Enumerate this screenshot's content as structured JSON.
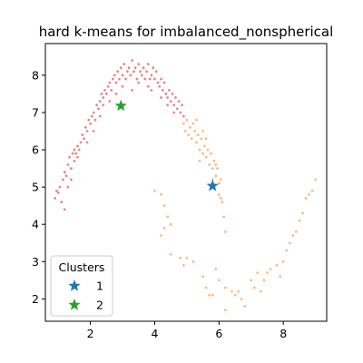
{
  "chart_data": {
    "type": "scatter",
    "title": "hard k-means for imbalanced_nonspherical",
    "xlabel": "",
    "ylabel": "",
    "xlim": [
      0.6,
      9.35
    ],
    "ylim": [
      1.4,
      8.85
    ],
    "xticks": [
      2,
      4,
      6,
      8
    ],
    "yticks": [
      2,
      3,
      4,
      5,
      6,
      7,
      8
    ],
    "grid": false,
    "point_colors": {
      "red": "#d62728",
      "orange": "#ff7f0e"
    },
    "point_groups": [
      {
        "color": "red",
        "points": [
          [
            0.9,
            4.7
          ],
          [
            0.95,
            4.9
          ],
          [
            1.0,
            4.85
          ],
          [
            1.05,
            5.0
          ],
          [
            1.1,
            4.6
          ],
          [
            1.15,
            5.2
          ],
          [
            1.2,
            4.4
          ],
          [
            1.2,
            5.4
          ],
          [
            1.25,
            5.3
          ],
          [
            1.3,
            5.0
          ],
          [
            1.3,
            5.6
          ],
          [
            1.35,
            5.8
          ],
          [
            1.4,
            5.5
          ],
          [
            1.45,
            5.9
          ],
          [
            1.5,
            6.0
          ],
          [
            1.5,
            5.7
          ],
          [
            1.55,
            5.9
          ],
          [
            1.6,
            6.1
          ],
          [
            1.65,
            6.0
          ],
          [
            1.7,
            6.2
          ],
          [
            1.75,
            6.4
          ],
          [
            1.8,
            6.3
          ],
          [
            1.85,
            6.6
          ],
          [
            1.9,
            6.5
          ],
          [
            1.95,
            6.8
          ],
          [
            2.0,
            6.7
          ],
          [
            2.05,
            6.9
          ],
          [
            2.1,
            7.0
          ],
          [
            2.15,
            6.8
          ],
          [
            2.2,
            7.2
          ],
          [
            2.25,
            7.1
          ],
          [
            2.3,
            7.3
          ],
          [
            2.35,
            7.5
          ],
          [
            2.4,
            7.4
          ],
          [
            2.45,
            7.6
          ],
          [
            2.5,
            7.5
          ],
          [
            2.55,
            7.7
          ],
          [
            2.6,
            7.8
          ],
          [
            2.65,
            7.6
          ],
          [
            2.7,
            7.9
          ],
          [
            2.75,
            8.0
          ],
          [
            2.8,
            7.8
          ],
          [
            2.85,
            8.1
          ],
          [
            2.9,
            7.9
          ],
          [
            2.95,
            8.2
          ],
          [
            3.0,
            8.0
          ],
          [
            3.05,
            8.3
          ],
          [
            3.1,
            7.9
          ],
          [
            3.15,
            8.1
          ],
          [
            3.2,
            8.2
          ],
          [
            3.25,
            8.0
          ],
          [
            3.3,
            8.4
          ],
          [
            3.35,
            8.1
          ],
          [
            3.4,
            8.2
          ],
          [
            3.45,
            7.9
          ],
          [
            3.5,
            8.3
          ],
          [
            3.55,
            8.1
          ],
          [
            3.6,
            8.0
          ],
          [
            3.65,
            8.2
          ],
          [
            3.7,
            7.9
          ],
          [
            3.75,
            8.1
          ],
          [
            3.8,
            8.3
          ],
          [
            3.85,
            7.9
          ],
          [
            3.9,
            8.0
          ],
          [
            3.95,
            8.2
          ],
          [
            4.0,
            7.9
          ],
          [
            4.05,
            8.1
          ],
          [
            4.1,
            7.8
          ],
          [
            4.15,
            7.7
          ],
          [
            4.2,
            7.9
          ],
          [
            4.25,
            7.6
          ],
          [
            4.3,
            7.8
          ],
          [
            4.35,
            7.5
          ],
          [
            4.4,
            7.4
          ],
          [
            4.45,
            7.6
          ],
          [
            4.5,
            7.3
          ],
          [
            4.55,
            7.5
          ],
          [
            4.6,
            7.2
          ],
          [
            4.65,
            7.4
          ],
          [
            4.7,
            7.1
          ],
          [
            4.75,
            7.3
          ],
          [
            4.8,
            7.0
          ],
          [
            4.85,
            7.2
          ],
          [
            4.9,
            6.9
          ],
          [
            2.6,
            7.3
          ],
          [
            2.3,
            6.9
          ],
          [
            1.9,
            6.2
          ],
          [
            3.3,
            7.6
          ],
          [
            3.8,
            7.7
          ],
          [
            4.4,
            7.2
          ],
          [
            1.4,
            5.2
          ],
          [
            2.1,
            6.5
          ],
          [
            2.8,
            7.5
          ],
          [
            3.5,
            7.8
          ],
          [
            4.2,
            7.4
          ],
          [
            1.6,
            5.8
          ],
          [
            2.4,
            7.2
          ],
          [
            3.0,
            7.7
          ],
          [
            3.9,
            7.6
          ],
          [
            4.6,
            7.0
          ]
        ]
      },
      {
        "color": "orange",
        "points": [
          [
            4.9,
            6.7
          ],
          [
            4.95,
            6.5
          ],
          [
            5.0,
            6.8
          ],
          [
            5.05,
            6.4
          ],
          [
            5.1,
            6.6
          ],
          [
            5.15,
            6.3
          ],
          [
            5.2,
            6.7
          ],
          [
            5.25,
            6.5
          ],
          [
            5.3,
            6.2
          ],
          [
            5.35,
            6.4
          ],
          [
            5.4,
            6.0
          ],
          [
            5.45,
            6.3
          ],
          [
            5.5,
            5.9
          ],
          [
            5.55,
            6.1
          ],
          [
            5.6,
            5.8
          ],
          [
            5.65,
            6.0
          ],
          [
            5.7,
            5.6
          ],
          [
            5.75,
            5.9
          ],
          [
            5.8,
            5.5
          ],
          [
            5.85,
            5.7
          ],
          [
            5.9,
            5.3
          ],
          [
            5.95,
            5.5
          ],
          [
            6.0,
            5.1
          ],
          [
            6.05,
            5.2
          ],
          [
            5.3,
            6.8
          ],
          [
            5.6,
            6.3
          ],
          [
            5.8,
            5.2
          ],
          [
            5.5,
            6.5
          ],
          [
            5.9,
            5.6
          ],
          [
            5.4,
            5.7
          ],
          [
            6.0,
            4.8
          ],
          [
            6.05,
            4.7
          ],
          [
            6.1,
            4.6
          ],
          [
            6.15,
            4.2
          ],
          [
            6.2,
            3.8
          ],
          [
            4.0,
            4.9
          ],
          [
            4.2,
            4.8
          ],
          [
            4.3,
            4.5
          ],
          [
            4.4,
            4.2
          ],
          [
            4.3,
            3.9
          ],
          [
            4.5,
            4.0
          ],
          [
            4.2,
            3.7
          ],
          [
            4.5,
            3.2
          ],
          [
            4.8,
            3.1
          ],
          [
            5.0,
            3.1
          ],
          [
            4.9,
            2.9
          ],
          [
            5.2,
            3.0
          ],
          [
            5.5,
            2.6
          ],
          [
            5.6,
            2.3
          ],
          [
            5.8,
            2.1
          ],
          [
            5.7,
            2.1
          ],
          [
            5.9,
            2.8
          ],
          [
            6.0,
            2.5
          ],
          [
            6.2,
            2.3
          ],
          [
            6.4,
            2.2
          ],
          [
            6.5,
            2.1
          ],
          [
            6.6,
            2.2
          ],
          [
            6.7,
            2.0
          ],
          [
            6.8,
            1.8
          ],
          [
            6.2,
            1.7
          ],
          [
            7.0,
            2.5
          ],
          [
            7.2,
            2.7
          ],
          [
            7.1,
            2.3
          ],
          [
            7.3,
            2.2
          ],
          [
            7.4,
            2.5
          ],
          [
            7.5,
            2.7
          ],
          [
            7.6,
            2.8
          ],
          [
            7.8,
            2.9
          ],
          [
            7.9,
            2.6
          ],
          [
            8.0,
            3.0
          ],
          [
            8.1,
            3.3
          ],
          [
            8.2,
            3.5
          ],
          [
            8.3,
            3.7
          ],
          [
            8.4,
            3.8
          ],
          [
            8.5,
            4.1
          ],
          [
            8.6,
            4.3
          ],
          [
            8.7,
            4.7
          ],
          [
            8.8,
            4.8
          ],
          [
            8.9,
            4.9
          ],
          [
            9.0,
            5.2
          ]
        ]
      }
    ],
    "centroids": [
      {
        "label": "1",
        "x": 5.8,
        "y": 5.03,
        "color": "#1f77b4"
      },
      {
        "label": "2",
        "x": 2.95,
        "y": 7.18,
        "color": "#2ca02c"
      }
    ],
    "legend": {
      "title": "Clusters",
      "position": "lower-left",
      "entries": [
        {
          "label": "1",
          "color": "#1f77b4"
        },
        {
          "label": "2",
          "color": "#2ca02c"
        }
      ]
    }
  }
}
